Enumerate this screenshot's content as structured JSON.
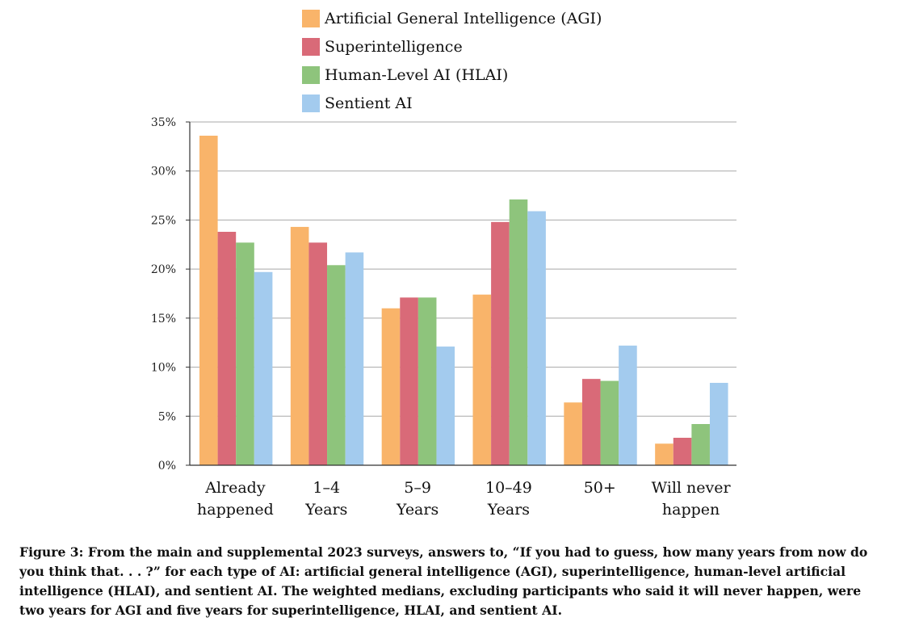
{
  "chart_data": {
    "type": "bar",
    "categories": [
      [
        "Already",
        "happened"
      ],
      [
        "1–4",
        "Years"
      ],
      [
        "5–9",
        "Years"
      ],
      [
        "10–49",
        "Years"
      ],
      [
        "50+"
      ],
      [
        "Will never",
        "happen"
      ]
    ],
    "series": [
      {
        "name": "Artificial General Intelligence (AGI)",
        "color": "#f9b46a",
        "values": [
          33.6,
          24.3,
          16.0,
          17.4,
          6.4,
          2.2
        ]
      },
      {
        "name": "Superintelligence",
        "color": "#d96a78",
        "values": [
          23.8,
          22.7,
          17.1,
          24.8,
          8.8,
          2.8
        ]
      },
      {
        "name": "Human-Level AI (HLAI)",
        "color": "#8ec47c",
        "values": [
          22.7,
          20.4,
          17.1,
          27.1,
          8.6,
          4.2
        ]
      },
      {
        "name": "Sentient AI",
        "color": "#a3cbee",
        "values": [
          19.7,
          21.7,
          12.1,
          25.9,
          12.2,
          8.4
        ]
      }
    ],
    "ylim": [
      0,
      35
    ],
    "yticks": [
      0,
      5,
      10,
      15,
      20,
      25,
      30,
      35
    ],
    "ytick_labels": [
      "0%",
      "5%",
      "10%",
      "15%",
      "20%",
      "25%",
      "30%",
      "35%"
    ],
    "grid": true,
    "legend_position": "top"
  },
  "caption": "Figure 3: From the main and supplemental 2023 surveys, answers to, “If you had to guess, how many years from now do you think that. . . ?” for each type of AI: artificial general intelligence (AGI), superintelligence, human-level artificial intelligence (HLAI), and sentient AI. The weighted medians, excluding participants who said it will never happen, were two years for AGI and five years for superintelligence, HLAI, and sentient AI."
}
